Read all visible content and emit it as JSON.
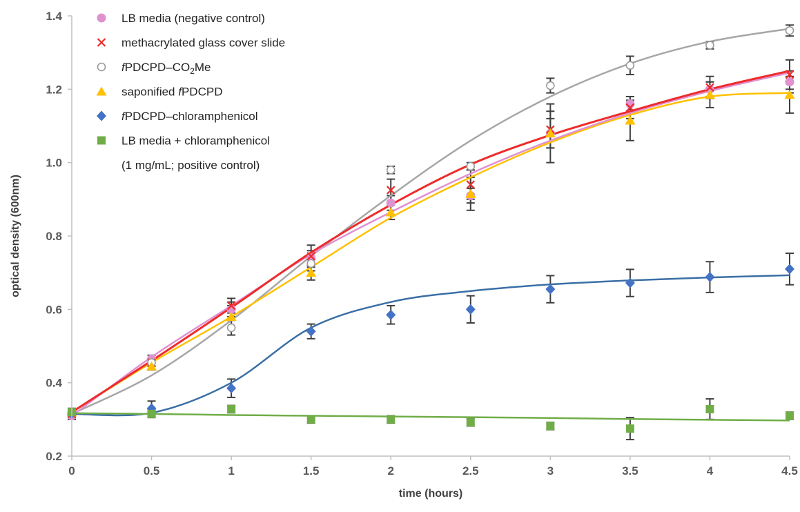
{
  "chart_data": {
    "type": "scatter",
    "title": "",
    "xlabel": "time (hours)",
    "ylabel": "optical density (600nm)",
    "xlim": [
      0,
      4.5
    ],
    "ylim": [
      0.2,
      1.4
    ],
    "xticks": [
      "0",
      "0.5",
      "1",
      "1.5",
      "2",
      "2.5",
      "3",
      "3.5",
      "4",
      "4.5"
    ],
    "yticks": [
      "0.2",
      "0.4",
      "0.6",
      "0.8",
      "1.0",
      "1.2",
      "1.4"
    ],
    "grid": false,
    "legend_position": "top-left",
    "legend": [
      {
        "parts": [
          {
            "t": "LB media (negative control)"
          }
        ]
      },
      {
        "parts": [
          {
            "t": "methacrylated glass cover slide"
          }
        ]
      },
      {
        "parts": [
          {
            "t": "f",
            "i": true
          },
          {
            "t": "PDCPD–CO"
          },
          {
            "t": "2",
            "sub": true
          },
          {
            "t": "Me"
          }
        ]
      },
      {
        "parts": [
          {
            "t": "saponified "
          },
          {
            "t": "f",
            "i": true
          },
          {
            "t": "PDCPD"
          }
        ]
      },
      {
        "parts": [
          {
            "t": "f",
            "i": true
          },
          {
            "t": "PDCPD–chloramphenicol"
          }
        ]
      },
      {
        "parts": [
          {
            "t": "LB media + chloramphenicol"
          }
        ]
      },
      {
        "parts": [
          {
            "t": "(1 mg/mL; positive control)"
          }
        ]
      }
    ],
    "x": [
      0,
      0.5,
      1,
      1.5,
      2,
      2.5,
      3,
      3.5,
      4,
      4.5
    ],
    "series": [
      {
        "key": "lb",
        "marker": "circle-filled",
        "color": "#e091cf",
        "line_color": "#e091cf",
        "values": [
          0.31,
          0.465,
          0.6,
          0.74,
          0.89,
          0.91,
          1.08,
          1.16,
          1.2,
          1.22
        ],
        "errors": [
          0.01,
          0.01,
          0.02,
          0.02,
          0.02,
          0.02,
          0.04,
          0.02,
          0.02,
          0.03
        ],
        "fit": [
          0.31,
          0.47,
          0.61,
          0.75,
          0.865,
          0.97,
          1.06,
          1.135,
          1.195,
          1.245
        ]
      },
      {
        "key": "glass",
        "marker": "x",
        "color": "#ee2b2b",
        "line_color": "#ee2b2b",
        "values": [
          0.315,
          0.455,
          0.61,
          0.745,
          0.925,
          0.94,
          1.09,
          1.15,
          1.205,
          1.24
        ],
        "errors": [
          0.01,
          0.01,
          0.02,
          0.03,
          0.03,
          0.04,
          0.05,
          0.03,
          0.03,
          0.04
        ],
        "fit": [
          0.32,
          0.46,
          0.605,
          0.755,
          0.885,
          0.995,
          1.075,
          1.14,
          1.2,
          1.25
        ]
      },
      {
        "key": "co2me",
        "marker": "circle-open",
        "color": "#999999",
        "line_color": "#a6a6a6",
        "values": [
          0.32,
          0.455,
          0.55,
          0.725,
          0.98,
          0.99,
          1.21,
          1.265,
          1.32,
          1.36
        ],
        "errors": [
          0.01,
          0.01,
          0.02,
          0.02,
          0.01,
          0.01,
          0.02,
          0.025,
          0.01,
          0.015
        ],
        "fit": [
          0.315,
          0.42,
          0.57,
          0.745,
          0.91,
          1.06,
          1.18,
          1.27,
          1.33,
          1.365
        ]
      },
      {
        "key": "sapon",
        "marker": "triangle",
        "color": "#ffc000",
        "line_color": "#ffc000",
        "values": [
          0.32,
          0.445,
          0.58,
          0.7,
          0.865,
          0.915,
          1.08,
          1.115,
          1.185,
          1.185
        ],
        "errors": [
          0.01,
          0.01,
          0.03,
          0.02,
          0.02,
          0.045,
          0.08,
          0.055,
          0.035,
          0.05
        ],
        "fit": [
          0.32,
          0.455,
          0.58,
          0.715,
          0.85,
          0.96,
          1.055,
          1.13,
          1.18,
          1.19
        ]
      },
      {
        "key": "chlor",
        "marker": "diamond",
        "color": "#4472c4",
        "line_color": "#3a6ea5",
        "values": [
          0.315,
          0.33,
          0.385,
          0.54,
          0.585,
          0.6,
          0.655,
          0.672,
          0.688,
          0.71
        ],
        "errors": [
          0.01,
          0.02,
          0.025,
          0.02,
          0.025,
          0.037,
          0.037,
          0.037,
          0.042,
          0.043
        ],
        "fit": [
          0.315,
          0.318,
          0.4,
          0.55,
          0.62,
          0.65,
          0.668,
          0.679,
          0.687,
          0.693
        ]
      },
      {
        "key": "pos",
        "marker": "square",
        "color": "#70ad47",
        "line_color": "#70ad47",
        "values": [
          0.32,
          0.315,
          0.328,
          0.3,
          0.3,
          0.292,
          0.282,
          0.275,
          0.328,
          0.31
        ],
        "errors": [
          0.01,
          0.01,
          0.01,
          0.01,
          0.01,
          0.01,
          0.01,
          0.03,
          0.028,
          0.01
        ],
        "fit": [
          0.317,
          0.315,
          0.312,
          0.31,
          0.308,
          0.306,
          0.304,
          0.301,
          0.299,
          0.297
        ]
      }
    ]
  }
}
